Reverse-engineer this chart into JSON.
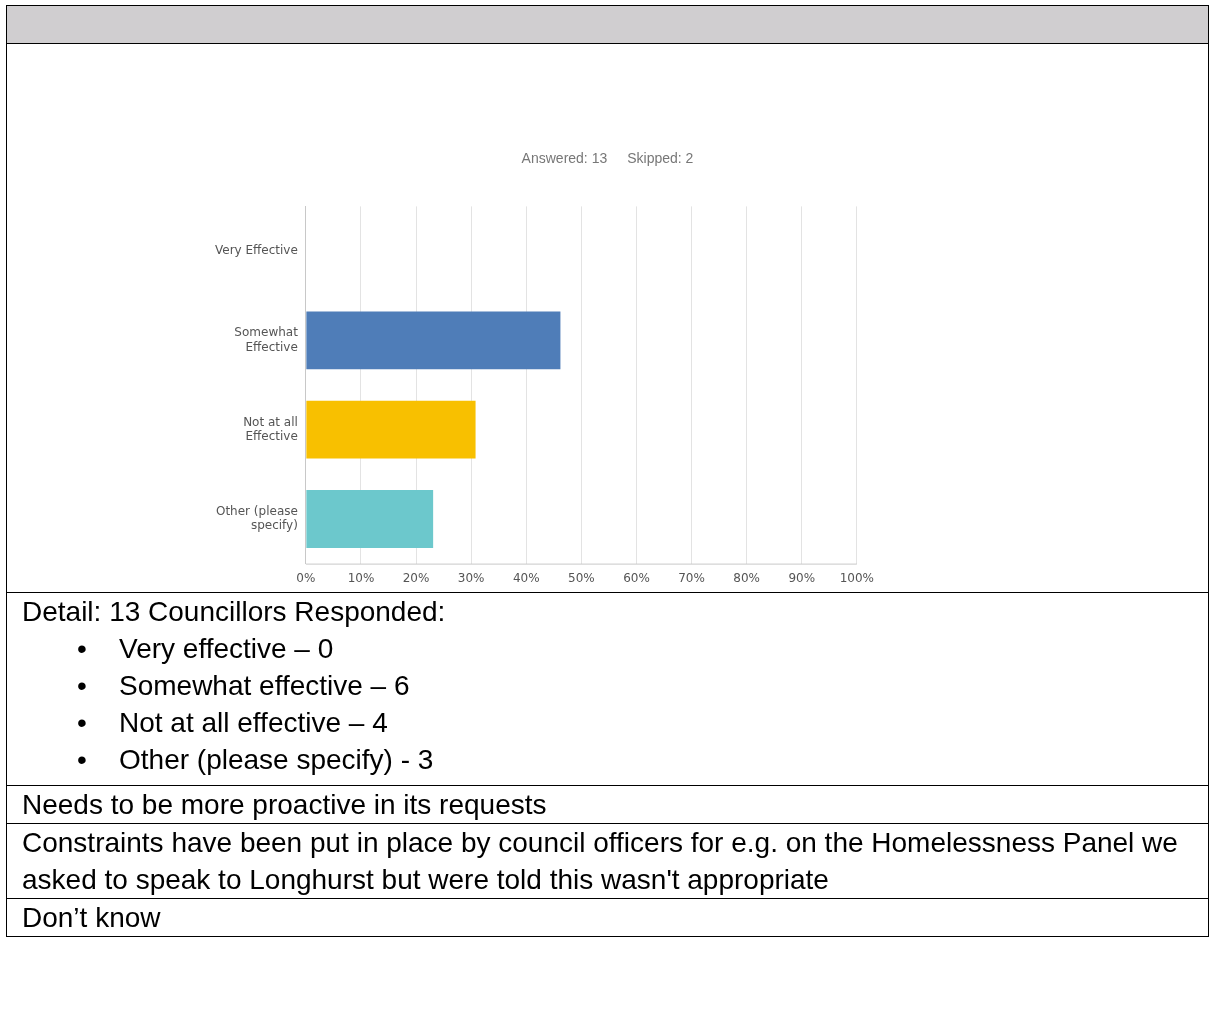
{
  "chart_data": {
    "type": "bar",
    "orientation": "horizontal",
    "categories": [
      "Very Effective",
      "Somewhat Effective",
      "Not at all Effective",
      "Other (please specify)"
    ],
    "values": [
      0,
      46.2,
      30.8,
      23.1
    ],
    "colors": [
      "#4f7db8",
      "#4f7db8",
      "#f8c000",
      "#6cc8cc"
    ],
    "xlim": [
      0,
      100
    ],
    "xticks": [
      {
        "value": 0,
        "label": "0%"
      },
      {
        "value": 10,
        "label": "10%"
      },
      {
        "value": 20,
        "label": "20%"
      },
      {
        "value": 30,
        "label": "30%"
      },
      {
        "value": 40,
        "label": "40%"
      },
      {
        "value": 50,
        "label": "50%"
      },
      {
        "value": 60,
        "label": "60%"
      },
      {
        "value": 70,
        "label": "70%"
      },
      {
        "value": 80,
        "label": "80%"
      },
      {
        "value": 90,
        "label": "90%"
      },
      {
        "value": 100,
        "label": "100%"
      }
    ],
    "grid": "x",
    "legend": false,
    "annotations": [
      "Answered: 13",
      "Skipped: 2",
      "Detail: 13 Councillors Responded:",
      "• Very effective – 0",
      "• Somewhat effective – 6",
      "• Not at all effective – 4",
      "• Other (please specify) - 3",
      "Needs to be more proactive in its requests",
      "Constraints have been put in place by council officers for e.g. on the Homelessness Panel we asked to speak to Longhurst but were told this wasn't appropriate",
      "Don’t know"
    ]
  }
}
